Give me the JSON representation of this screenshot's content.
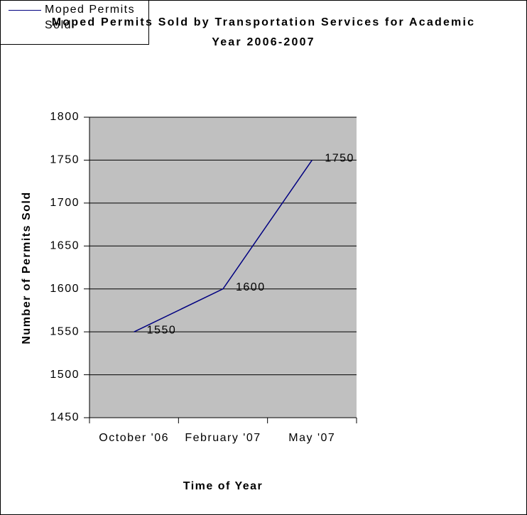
{
  "chart_data": {
    "type": "line",
    "title": "Moped Permits Sold by Transportation Services for Academic Year 2006-2007",
    "x_label": "Time of Year",
    "y_label": "Number of Permits Sold",
    "categories": [
      "October '06",
      "February '07",
      "May '07"
    ],
    "series": [
      {
        "name": "Moped Permits Sold",
        "color": "#000080",
        "values": [
          1550,
          1600,
          1750
        ]
      }
    ],
    "ylim": [
      1450,
      1800
    ],
    "yticks": [
      1450,
      1500,
      1550,
      1600,
      1650,
      1700,
      1750,
      1800
    ],
    "grid": true,
    "data_labels": true,
    "legend": "right"
  }
}
